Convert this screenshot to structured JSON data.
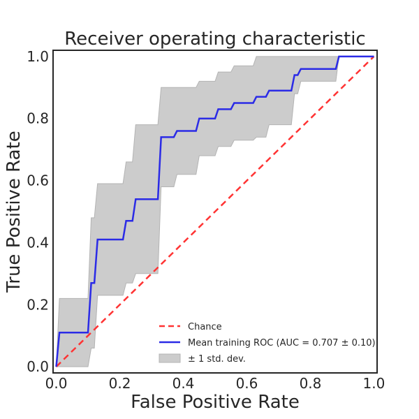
{
  "chart_data": {
    "type": "line",
    "title": "Receiver operating characteristic",
    "xlabel": "False Positive Rate",
    "ylabel": "True Positive Rate",
    "xlim": [
      -0.01,
      1.01
    ],
    "ylim": [
      -0.02,
      1.02
    ],
    "xticks": [
      0.0,
      0.2,
      0.4,
      0.6,
      0.8,
      1.0
    ],
    "xtick_labels": [
      "0.0",
      "0.2",
      "0.4",
      "0.6",
      "0.8",
      "1.0"
    ],
    "yticks": [
      0.0,
      0.2,
      0.4,
      0.6,
      0.8,
      1.0
    ],
    "ytick_labels": [
      "0.0",
      "0.2",
      "0.4",
      "0.6",
      "0.8",
      "1.0"
    ],
    "grid": false,
    "legend_position": "lower-right",
    "series": [
      {
        "name": "Chance",
        "style": "dashed",
        "color": "#ff3333",
        "x": [
          0.0,
          1.0
        ],
        "y": [
          0.0,
          1.0
        ]
      },
      {
        "name": "Mean training ROC (AUC = 0.707 ± 0.10)",
        "style": "solid",
        "color": "#2b2be6",
        "x": [
          0.0,
          0.01,
          0.1,
          0.11,
          0.12,
          0.13,
          0.21,
          0.22,
          0.24,
          0.25,
          0.32,
          0.33,
          0.37,
          0.38,
          0.44,
          0.45,
          0.5,
          0.51,
          0.55,
          0.56,
          0.62,
          0.63,
          0.66,
          0.67,
          0.74,
          0.75,
          0.76,
          0.77,
          0.88,
          0.89,
          1.0
        ],
        "y": [
          0.0,
          0.11,
          0.11,
          0.27,
          0.27,
          0.41,
          0.41,
          0.47,
          0.47,
          0.54,
          0.54,
          0.74,
          0.74,
          0.76,
          0.76,
          0.8,
          0.8,
          0.83,
          0.83,
          0.85,
          0.85,
          0.87,
          0.87,
          0.89,
          0.89,
          0.94,
          0.94,
          0.96,
          0.96,
          1.0,
          1.0
        ]
      },
      {
        "name": "± 1 std. dev.",
        "style": "band",
        "color": "#cccccc",
        "x": [
          0.0,
          0.01,
          0.1,
          0.11,
          0.12,
          0.13,
          0.21,
          0.22,
          0.24,
          0.25,
          0.32,
          0.33,
          0.37,
          0.38,
          0.44,
          0.45,
          0.5,
          0.51,
          0.55,
          0.56,
          0.62,
          0.63,
          0.66,
          0.67,
          0.74,
          0.75,
          0.76,
          0.77,
          0.88,
          0.89,
          1.0
        ],
        "upper": [
          0.0,
          0.22,
          0.22,
          0.48,
          0.48,
          0.59,
          0.59,
          0.66,
          0.66,
          0.78,
          0.78,
          0.9,
          0.9,
          0.9,
          0.9,
          0.92,
          0.92,
          0.95,
          0.95,
          0.97,
          0.97,
          1.0,
          1.0,
          1.0,
          1.0,
          1.0,
          1.0,
          1.0,
          1.0,
          1.0,
          1.0
        ],
        "lower": [
          0.0,
          0.0,
          0.0,
          0.06,
          0.06,
          0.23,
          0.23,
          0.27,
          0.27,
          0.3,
          0.3,
          0.58,
          0.58,
          0.62,
          0.62,
          0.68,
          0.68,
          0.71,
          0.71,
          0.73,
          0.73,
          0.74,
          0.74,
          0.78,
          0.78,
          0.88,
          0.88,
          0.92,
          0.92,
          1.0,
          1.0
        ]
      }
    ]
  }
}
